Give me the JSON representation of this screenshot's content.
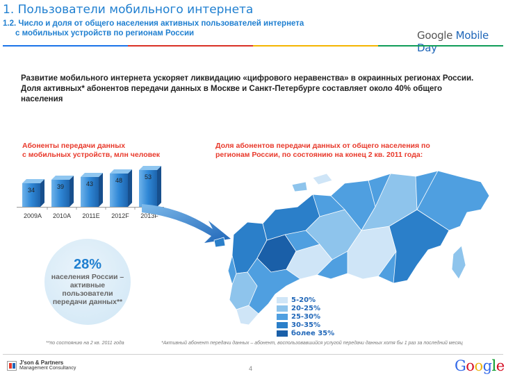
{
  "header": {
    "title": "1. Пользователи мобильного интернета",
    "subtitle_line1": "1.2. Число и доля от общего населения активных пользователей  интернета",
    "subtitle_line2": "с мобильных устройств  по регионам России",
    "logo_google": "Google",
    "logo_mobile_day": "Mobile Day"
  },
  "intro": "Развитие мобильного интернета ускоряет ликвидацию  «цифрового неравенства» в окраинных регионах России.  Доля активных* абонентов передачи данных в Москве и Санкт-Петербурге составляет около 40% общего населения",
  "chart_data": {
    "type": "bar",
    "title": "Абоненты передачи данных\nс мобильных устройств, млн человек",
    "categories": [
      "2009A",
      "2010A",
      "2011E",
      "2012F",
      "2013F"
    ],
    "values": [
      34,
      39,
      43,
      48,
      53
    ]
  },
  "bar_title_line1": "Абоненты передачи данных",
  "bar_title_line2": "с мобильных устройств, млн человек",
  "stat": {
    "value": "28%",
    "label": "населения России – активные пользователи передачи данных**"
  },
  "map": {
    "title": "Доля абонентов передачи данных от общего населения по регионам России, по состоянию на конец 2 кв. 2011 года:",
    "legend": [
      {
        "label": "5-20%",
        "color": "#cfe5f7"
      },
      {
        "label": "20-25%",
        "color": "#8ec4ec"
      },
      {
        "label": "25-30%",
        "color": "#4f9fe0"
      },
      {
        "label": "30-35%",
        "color": "#2b7fc9"
      },
      {
        "label": "более 35%",
        "color": "#1a5fa8"
      }
    ]
  },
  "footnotes": {
    "left": "**по состоянию на 2 кв. 2011 года",
    "right": "*Активный абонент передачи данных – абонент, воспользовавшийся услугой передачи данных хотя бы 1 раз за последний месяц"
  },
  "footer": {
    "company_line1": "J'son & Partners",
    "company_line2": "Management Consultancy",
    "page_number": "4",
    "google_logo": "Google"
  }
}
